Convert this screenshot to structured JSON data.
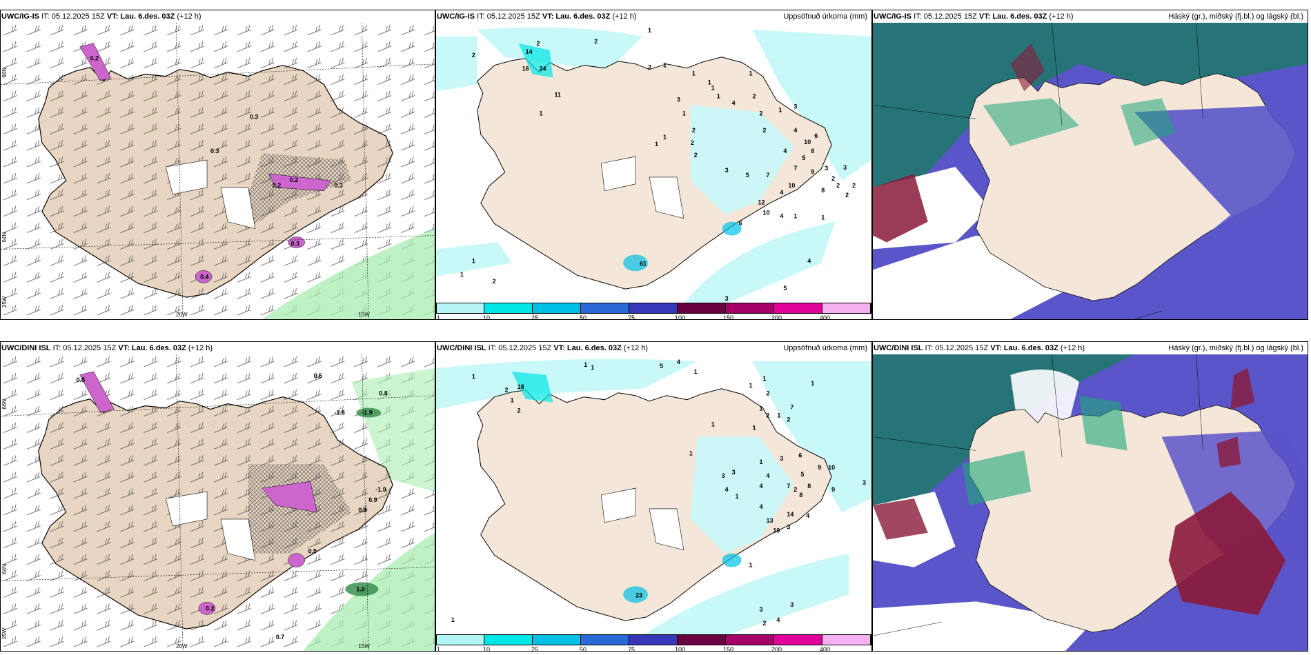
{
  "rows": [
    {
      "model": "UWC/IG-IS",
      "it": "IT: 05.12.2025 15Z",
      "vt_label": "VT:",
      "vt": "Lau. 6.des. 03Z",
      "lead": "(+12 h)",
      "precip_title": "Uppsöfnuð úrkoma (mm)",
      "cloud_title": "Háský (gr.), miðský (fj.bl.) og lágský (bl.)",
      "wind_labels": [
        "0.3",
        "0.2",
        "0.2",
        "0.3",
        "0.4",
        "0.3",
        "0.3",
        "0.2"
      ],
      "precip_labels": [
        "2",
        "2",
        "2",
        "1",
        "14",
        "16",
        "24",
        "11",
        "1",
        "2",
        "1",
        "1",
        "1",
        "1",
        "1",
        "2",
        "1",
        "2",
        "2",
        "1",
        "1",
        "2",
        "3",
        "1",
        "3",
        "1",
        "2",
        "4",
        "4",
        "3",
        "4",
        "2",
        "10",
        "8",
        "6",
        "7",
        "5",
        "9",
        "3",
        "2",
        "2",
        "7",
        "5",
        "4",
        "10",
        "8",
        "2",
        "2",
        "3",
        "12",
        "10",
        "6",
        "4",
        "1",
        "1",
        "4",
        "5",
        "3",
        "1",
        "1",
        "2",
        "61"
      ]
    },
    {
      "model": "UWC/DINI ISL",
      "it": "IT: 05.12.2025 15Z",
      "vt_label": "VT:",
      "vt": "Lau. 6.des. 03Z",
      "lead": "(+12 h)",
      "precip_title": "Uppsöfnuð úrkoma (mm)",
      "cloud_title": "Háský (gr.), miðský (fj.bl.) og lágský (bl.)",
      "wind_labels": [
        "0.6",
        "0.8",
        "-1.6",
        "-1.9",
        "-1.9",
        "0.9",
        "0.8",
        "0.5",
        "1.0",
        "0.7",
        "0.2",
        "0.5"
      ],
      "precip_labels": [
        "1",
        "1",
        "5",
        "4",
        "1",
        "1",
        "2",
        "18",
        "1",
        "2",
        "1",
        "1",
        "2",
        "7",
        "1",
        "2",
        "1",
        "2",
        "1",
        "1",
        "1",
        "1",
        "3",
        "3",
        "4",
        "1",
        "3",
        "6",
        "9",
        "10",
        "4",
        "5",
        "4",
        "1",
        "2",
        "7",
        "8",
        "8",
        "4",
        "13",
        "10",
        "14",
        "3",
        "9",
        "4",
        "3",
        "3",
        "4",
        "3",
        "2",
        "1",
        "1",
        "23"
      ]
    }
  ],
  "axis_labels": {
    "lon_20w": "20W",
    "lon_15w": "15W",
    "lat_66n": "66N",
    "lat_64n": "64N",
    "lat_25w": "25W"
  },
  "legend": {
    "ticks": [
      "1",
      "10",
      "25",
      "50",
      "75",
      "100",
      "150",
      "200",
      "400"
    ],
    "colors": [
      "#b3f5f5",
      "#00e5e5",
      "#00c0e5",
      "#2a6ad8",
      "#3737b9",
      "#6b0040",
      "#a60068",
      "#e0009a",
      "#f5b0f0"
    ]
  },
  "colors": {
    "land": "#f4e6d9",
    "wind_land": "#e8d5c2",
    "ocean": "#ffffff",
    "precip_light": "#c8f8f8",
    "cloud_high": "#5a55c8",
    "cloud_mid": "#1ea878",
    "cloud_low": "#8a1a3a",
    "green_precip": "#a8ecb0",
    "pink_precip": "#cc66cc"
  }
}
